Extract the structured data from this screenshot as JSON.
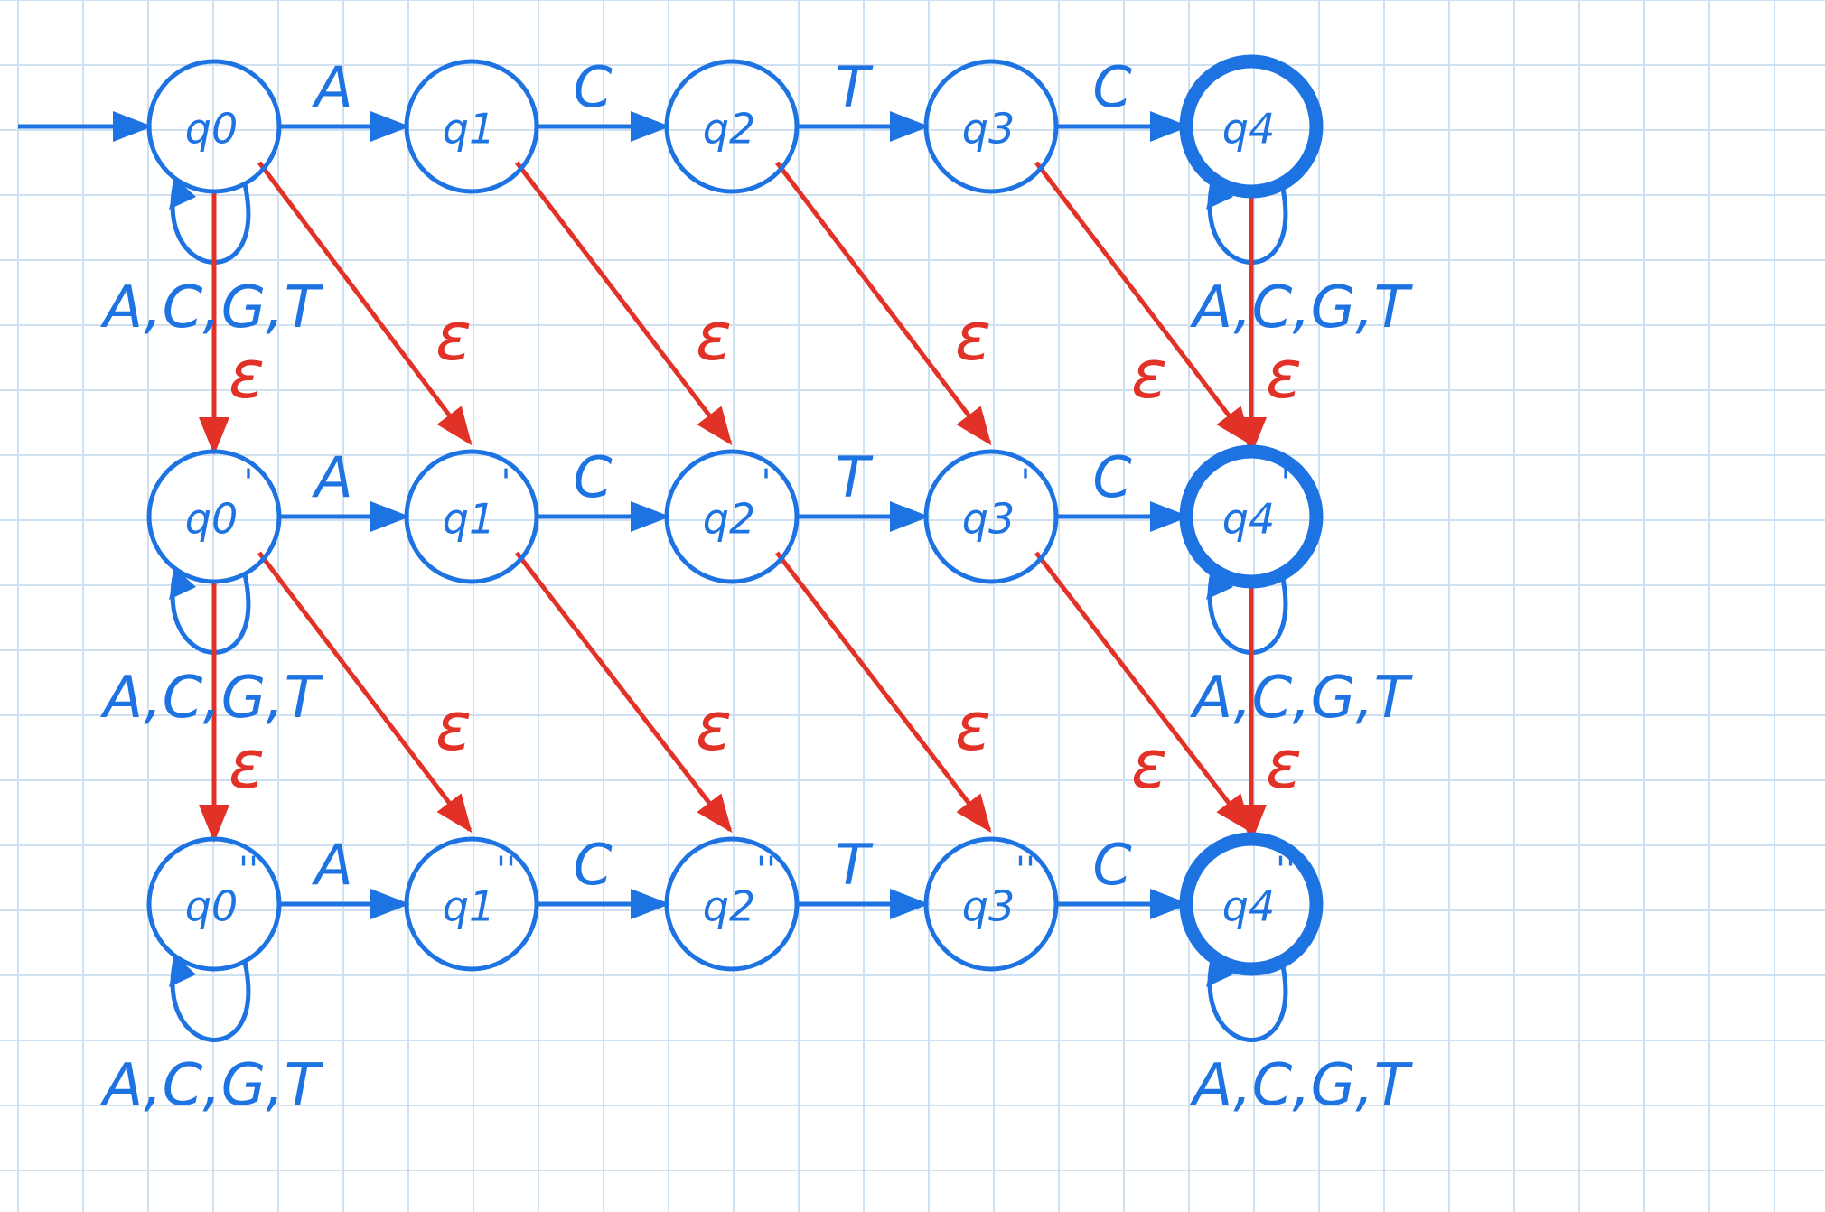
{
  "colors": {
    "background": "#ffffff",
    "grid": "#cfe0f0",
    "blue": "#1e73e2",
    "red": "#e23127"
  },
  "grid": true,
  "rows": [
    {
      "states": [
        {
          "name": "q0",
          "label": "q0",
          "prime": "",
          "accepting": false,
          "start": true
        },
        {
          "name": "q1",
          "label": "q1",
          "prime": "",
          "accepting": false,
          "start": false
        },
        {
          "name": "q2",
          "label": "q2",
          "prime": "",
          "accepting": false,
          "start": false
        },
        {
          "name": "q3",
          "label": "q3",
          "prime": "",
          "accepting": false,
          "start": false
        },
        {
          "name": "q4",
          "label": "q4",
          "prime": "",
          "accepting": true,
          "start": false
        }
      ],
      "transitions": [
        "A",
        "C",
        "T",
        "C"
      ],
      "self_loop_left": "A,C,G,T",
      "self_loop_right": "A,C,G,T"
    },
    {
      "states": [
        {
          "name": "q0-prime",
          "label": "q0",
          "prime": "'",
          "accepting": false,
          "start": false
        },
        {
          "name": "q1-prime",
          "label": "q1",
          "prime": "'",
          "accepting": false,
          "start": false
        },
        {
          "name": "q2-prime",
          "label": "q2",
          "prime": "'",
          "accepting": false,
          "start": false
        },
        {
          "name": "q3-prime",
          "label": "q3",
          "prime": "'",
          "accepting": false,
          "start": false
        },
        {
          "name": "q4-prime",
          "label": "q4",
          "prime": "'",
          "accepting": true,
          "start": false
        }
      ],
      "transitions": [
        "A",
        "C",
        "T",
        "C"
      ],
      "self_loop_left": "A,C,G,T",
      "self_loop_right": "A,C,G,T"
    },
    {
      "states": [
        {
          "name": "q0-double-prime",
          "label": "q0",
          "prime": "''",
          "accepting": false,
          "start": false
        },
        {
          "name": "q1-double-prime",
          "label": "q1",
          "prime": "''",
          "accepting": false,
          "start": false
        },
        {
          "name": "q2-double-prime",
          "label": "q2",
          "prime": "''",
          "accepting": false,
          "start": false
        },
        {
          "name": "q3-double-prime",
          "label": "q3",
          "prime": "''",
          "accepting": false,
          "start": false
        },
        {
          "name": "q4-double-prime",
          "label": "q4",
          "prime": "''",
          "accepting": true,
          "start": false
        }
      ],
      "transitions": [
        "A",
        "C",
        "T",
        "C"
      ],
      "self_loop_left": "A,C,G,T",
      "self_loop_right": "A,C,G,T"
    }
  ],
  "epsilon": "ε"
}
